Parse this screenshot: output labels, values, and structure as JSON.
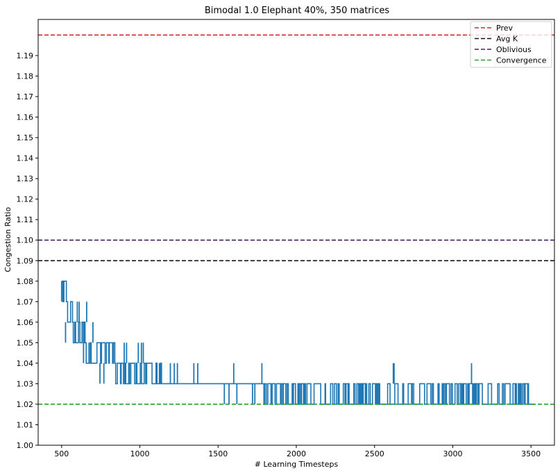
{
  "chart_data": {
    "type": "line",
    "title": "Bimodal 1.0 Elephant 40%, 350 matrices",
    "xlabel": "# Learning Timesteps",
    "ylabel": "Congestion Ratio",
    "xlim": [
      350,
      3650
    ],
    "ylim": [
      1.0,
      1.2
    ],
    "xticks": [
      500,
      1000,
      1500,
      2000,
      2500,
      3000,
      3500
    ],
    "yticks": [
      1.0,
      1.01,
      1.02,
      1.03,
      1.04,
      1.05,
      1.06,
      1.07,
      1.08,
      1.09,
      1.1,
      1.11,
      1.12,
      1.13,
      1.14,
      1.15,
      1.16,
      1.17,
      1.18,
      1.19
    ],
    "grid": false,
    "legend_placement": "top-right",
    "reference_lines": [
      {
        "name": "Prev",
        "y": 1.2,
        "color": "#d62728",
        "dash": "dashed"
      },
      {
        "name": "Avg K",
        "y": 1.09,
        "color": "#111111",
        "dash": "dashed"
      },
      {
        "name": "Oblivious",
        "y": 1.1,
        "color": "#4b1f5e",
        "dash": "dashed"
      },
      {
        "name": "Convergence",
        "y": 1.02,
        "color": "#2ca02c",
        "dash": "dashed"
      }
    ],
    "series": [
      {
        "color": "#1f77b4",
        "segments": [
          {
            "x_start": 500,
            "x_end": 530,
            "low": 1.07,
            "high": 1.08
          },
          {
            "x_start": 530,
            "x_end": 570,
            "low": 1.06,
            "high": 1.07
          },
          {
            "x_start": 570,
            "x_end": 650,
            "low": 1.05,
            "high": 1.06
          },
          {
            "x_start": 650,
            "x_end": 840,
            "low": 1.04,
            "high": 1.05
          },
          {
            "x_start": 840,
            "x_end": 1140,
            "low": 1.03,
            "high": 1.04
          },
          {
            "x_start": 1140,
            "x_end": 1790,
            "low": 1.03,
            "high": 1.03
          },
          {
            "x_start": 1790,
            "x_end": 3490,
            "low": 1.02,
            "high": 1.03
          }
        ],
        "spikes": [
          {
            "x": 500,
            "low": 1.07,
            "high": 1.08
          },
          {
            "x": 525,
            "low": 1.05,
            "high": 1.06
          },
          {
            "x": 600,
            "low": 1.06,
            "high": 1.07
          },
          {
            "x": 612,
            "low": 1.06,
            "high": 1.07
          },
          {
            "x": 640,
            "low": 1.04,
            "high": 1.05
          },
          {
            "x": 660,
            "low": 1.06,
            "high": 1.07
          },
          {
            "x": 675,
            "low": 1.04,
            "high": 1.05
          },
          {
            "x": 700,
            "low": 1.05,
            "high": 1.06
          },
          {
            "x": 745,
            "low": 1.03,
            "high": 1.04
          },
          {
            "x": 770,
            "low": 1.03,
            "high": 1.04
          },
          {
            "x": 830,
            "low": 1.04,
            "high": 1.05
          },
          {
            "x": 900,
            "low": 1.04,
            "high": 1.05
          },
          {
            "x": 915,
            "low": 1.04,
            "high": 1.05
          },
          {
            "x": 990,
            "low": 1.04,
            "high": 1.05
          },
          {
            "x": 1010,
            "low": 1.04,
            "high": 1.05
          },
          {
            "x": 1022,
            "low": 1.04,
            "high": 1.05
          },
          {
            "x": 1125,
            "low": 1.03,
            "high": 1.04
          },
          {
            "x": 1195,
            "low": 1.03,
            "high": 1.04
          },
          {
            "x": 1220,
            "low": 1.03,
            "high": 1.04
          },
          {
            "x": 1240,
            "low": 1.03,
            "high": 1.04
          },
          {
            "x": 1345,
            "low": 1.03,
            "high": 1.04
          },
          {
            "x": 1370,
            "low": 1.03,
            "high": 1.04
          },
          {
            "x": 1540,
            "low": 1.02,
            "high": 1.03
          },
          {
            "x": 1570,
            "low": 1.02,
            "high": 1.03
          },
          {
            "x": 1600,
            "low": 1.03,
            "high": 1.04
          },
          {
            "x": 1620,
            "low": 1.02,
            "high": 1.03
          },
          {
            "x": 1720,
            "low": 1.02,
            "high": 1.03
          },
          {
            "x": 1735,
            "low": 1.02,
            "high": 1.03
          },
          {
            "x": 1780,
            "low": 1.03,
            "high": 1.04
          },
          {
            "x": 2620,
            "low": 1.03,
            "high": 1.04
          },
          {
            "x": 2625,
            "low": 1.03,
            "high": 1.04
          },
          {
            "x": 3120,
            "low": 1.03,
            "high": 1.04
          }
        ],
        "tail": {
          "x_start": 3490,
          "x_end": 3520,
          "y": 1.02
        }
      }
    ]
  }
}
